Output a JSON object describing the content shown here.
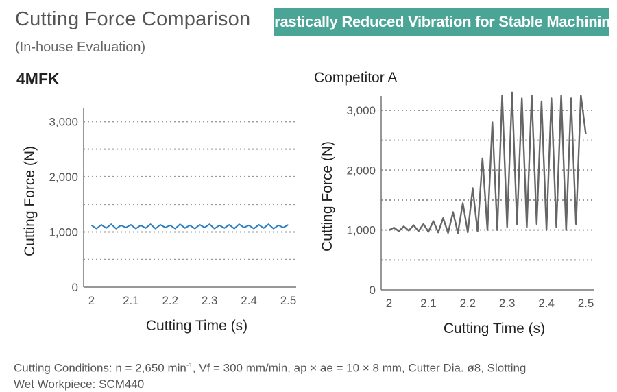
{
  "header": {
    "title": "Cutting Force Comparison",
    "subtitle": "(In-house Evaluation)",
    "banner": "Drastically Reduced Vibration for Stable Machining"
  },
  "footer": {
    "line1_a": "Cutting Conditions: n = 2,650 min",
    "line1_sup": "-1",
    "line1_b": ",  Vf = 300 mm/min,  ap × ae = 10 × 8 mm,  Cutter Dia. ø8,  Slotting",
    "line2": "Wet  Workpiece: SCM440"
  },
  "colors": {
    "series_4mfk": "#2a7bbf",
    "series_competitor": "#666666",
    "grid": "#9a9a9a",
    "banner": "#4aa596"
  },
  "chart_data": [
    {
      "type": "line",
      "title": "4MFK",
      "xlabel": "Cutting Time (s)",
      "ylabel": "Cutting Force (N)",
      "xlim": [
        1.98,
        2.52
      ],
      "ylim": [
        0,
        3000
      ],
      "xticks": [
        "2",
        "2.1",
        "2.2",
        "2.3",
        "2.4",
        "2.5"
      ],
      "yticks": [
        "0",
        "1,000",
        "2,000",
        "3,000"
      ],
      "grid": "dotted-horizontal",
      "series": [
        {
          "values_x": [
            2.0,
            2.0125,
            2.025,
            2.0375,
            2.05,
            2.0625,
            2.075,
            2.0875,
            2.1,
            2.1125,
            2.125,
            2.1375,
            2.15,
            2.1625,
            2.175,
            2.1875,
            2.2,
            2.2125,
            2.225,
            2.2375,
            2.25,
            2.2625,
            2.275,
            2.2875,
            2.3,
            2.3125,
            2.325,
            2.3375,
            2.35,
            2.3625,
            2.375,
            2.3875,
            2.4,
            2.4125,
            2.425,
            2.4375,
            2.45,
            2.4625,
            2.475,
            2.4875,
            2.5
          ],
          "values_y": [
            1120,
            1060,
            1130,
            1070,
            1140,
            1060,
            1120,
            1080,
            1130,
            1060,
            1120,
            1070,
            1140,
            1060,
            1130,
            1080,
            1120,
            1060,
            1140,
            1070,
            1120,
            1060,
            1130,
            1080,
            1140,
            1060,
            1120,
            1070,
            1130,
            1060,
            1140,
            1080,
            1120,
            1060,
            1130,
            1070,
            1140,
            1060,
            1120,
            1080,
            1130
          ]
        }
      ]
    },
    {
      "type": "line",
      "title": "Competitor A",
      "xlabel": "Cutting Time (s)",
      "ylabel": "Cutting Force (N)",
      "xlim": [
        1.98,
        2.52
      ],
      "ylim": [
        0,
        3000
      ],
      "xticks": [
        "2",
        "2.1",
        "2.2",
        "2.3",
        "2.4",
        "2.5"
      ],
      "yticks": [
        "0",
        "1,000",
        "2,000",
        "3,000"
      ],
      "grid": "dotted-horizontal",
      "series": [
        {
          "values_x": [
            2.0,
            2.0125,
            2.025,
            2.0375,
            2.05,
            2.0625,
            2.075,
            2.0875,
            2.1,
            2.1125,
            2.125,
            2.1375,
            2.15,
            2.1625,
            2.175,
            2.1875,
            2.2,
            2.2125,
            2.225,
            2.2375,
            2.25,
            2.2625,
            2.275,
            2.2875,
            2.3,
            2.3125,
            2.325,
            2.3375,
            2.35,
            2.3625,
            2.375,
            2.3875,
            2.4,
            2.4125,
            2.425,
            2.4375,
            2.45,
            2.4625,
            2.475,
            2.4875,
            2.5
          ],
          "values_y": [
            1000,
            1040,
            980,
            1060,
            990,
            1080,
            980,
            1100,
            970,
            1150,
            960,
            1200,
            950,
            1300,
            950,
            1450,
            960,
            1700,
            980,
            2200,
            1000,
            2800,
            1000,
            3250,
            1050,
            3300,
            1100,
            3200,
            1050,
            3250,
            1100,
            3150,
            1000,
            3200,
            1050,
            3250,
            1000,
            3200,
            1100,
            3250,
            2600
          ]
        }
      ]
    }
  ]
}
